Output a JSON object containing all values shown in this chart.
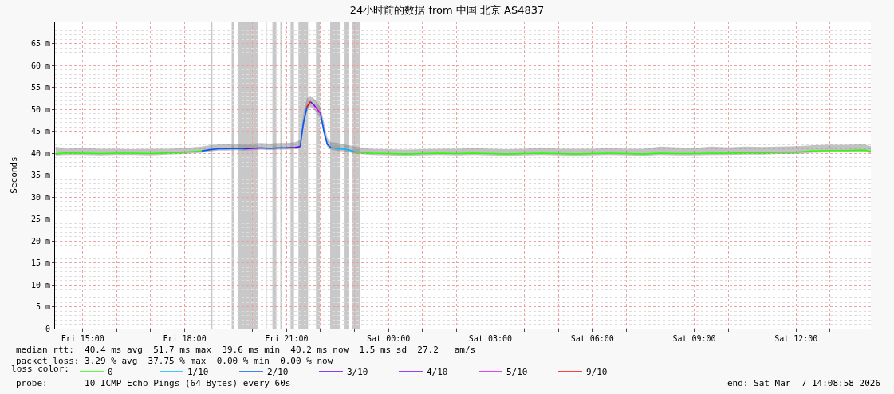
{
  "chart_data": {
    "type": "line",
    "title": "24小时前的数据 from 中国 北京 AS4837",
    "ylabel": "Seconds",
    "legend_title": "loss color:",
    "legend": "bottom",
    "grid": true,
    "marker": "none",
    "line_style": "solid",
    "xlim": [
      "2026-03-06T14:11",
      "2026-03-07T14:12"
    ],
    "ylim": [
      0,
      70
    ],
    "xticks": [
      {
        "value": "2026-03-06T15:00",
        "label": "Fri 15:00"
      },
      {
        "value": "2026-03-06T16:00",
        "label": null
      },
      {
        "value": "2026-03-06T17:00",
        "label": null
      },
      {
        "value": "2026-03-06T18:00",
        "label": "Fri 18:00"
      },
      {
        "value": "2026-03-06T19:00",
        "label": null
      },
      {
        "value": "2026-03-06T20:00",
        "label": null
      },
      {
        "value": "2026-03-06T21:00",
        "label": "Fri 21:00"
      },
      {
        "value": "2026-03-06T22:00",
        "label": null
      },
      {
        "value": "2026-03-06T23:00",
        "label": null
      },
      {
        "value": "2026-03-07T00:00",
        "label": "Sat 00:00"
      },
      {
        "value": "2026-03-07T01:00",
        "label": null
      },
      {
        "value": "2026-03-07T02:00",
        "label": null
      },
      {
        "value": "2026-03-07T03:00",
        "label": "Sat 03:00"
      },
      {
        "value": "2026-03-07T04:00",
        "label": null
      },
      {
        "value": "2026-03-07T05:00",
        "label": null
      },
      {
        "value": "2026-03-07T06:00",
        "label": "Sat 06:00"
      },
      {
        "value": "2026-03-07T07:00",
        "label": null
      },
      {
        "value": "2026-03-07T08:00",
        "label": null
      },
      {
        "value": "2026-03-07T09:00",
        "label": "Sat 09:00"
      },
      {
        "value": "2026-03-07T10:00",
        "label": null
      },
      {
        "value": "2026-03-07T11:00",
        "label": null
      },
      {
        "value": "2026-03-07T12:00",
        "label": "Sat 12:00"
      },
      {
        "value": "2026-03-07T13:00",
        "label": null
      },
      {
        "value": "2026-03-07T14:00",
        "label": null
      }
    ],
    "yticks": [
      0,
      {
        "value": 5,
        "label": "5 m"
      },
      {
        "value": 10,
        "label": "10 m"
      },
      {
        "value": 15,
        "label": "15 m"
      },
      {
        "value": 20,
        "label": "20 m"
      },
      {
        "value": 25,
        "label": "25 m"
      },
      {
        "value": 30,
        "label": "30 m"
      },
      {
        "value": 35,
        "label": "35 m"
      },
      {
        "value": 40,
        "label": "40 m"
      },
      {
        "value": 45,
        "label": "45 m"
      },
      {
        "value": 50,
        "label": "50 m"
      },
      {
        "value": 55,
        "label": "55 m"
      },
      {
        "value": 60,
        "label": "60 m"
      },
      {
        "value": 65,
        "label": "65 m"
      }
    ],
    "series": [
      {
        "name": "0",
        "color": "#26ff00",
        "x": [
          "2026-03-06T14:12",
          "2026-03-06T14:30",
          "2026-03-06T15:00",
          "2026-03-06T15:30",
          "2026-03-06T16:00",
          "2026-03-06T16:30",
          "2026-03-06T17:00",
          "2026-03-06T17:30",
          "2026-03-06T18:00",
          "2026-03-06T18:30",
          "2026-03-06T18:45",
          "2026-03-06T19:00",
          "2026-03-06T19:15",
          "2026-03-06T19:30",
          "2026-03-06T19:45",
          "2026-03-06T20:00",
          "2026-03-06T20:15",
          "2026-03-06T20:30",
          "2026-03-06T20:45",
          "2026-03-06T21:00",
          "2026-03-06T21:15",
          "2026-03-06T21:24",
          "2026-03-06T21:30",
          "2026-03-06T21:36",
          "2026-03-06T21:42",
          "2026-03-06T21:48",
          "2026-03-06T21:54",
          "2026-03-06T22:00",
          "2026-03-06T22:06",
          "2026-03-06T22:12",
          "2026-03-06T22:18",
          "2026-03-06T22:30",
          "2026-03-06T22:42",
          "2026-03-06T22:51",
          "2026-03-06T23:00",
          "2026-03-06T23:30",
          "2026-03-07T00:00",
          "2026-03-07T00:30",
          "2026-03-07T01:00",
          "2026-03-07T01:30",
          "2026-03-07T02:00",
          "2026-03-07T02:30",
          "2026-03-07T03:00",
          "2026-03-07T03:30",
          "2026-03-07T04:00",
          "2026-03-07T04:30",
          "2026-03-07T05:00",
          "2026-03-07T05:30",
          "2026-03-07T06:00",
          "2026-03-07T06:30",
          "2026-03-07T07:00",
          "2026-03-07T07:30",
          "2026-03-07T08:00",
          "2026-03-07T08:30",
          "2026-03-07T09:00",
          "2026-03-07T09:30",
          "2026-03-07T10:00",
          "2026-03-07T10:30",
          "2026-03-07T11:00",
          "2026-03-07T11:30",
          "2026-03-07T12:00",
          "2026-03-07T12:30",
          "2026-03-07T13:00",
          "2026-03-07T13:30",
          "2026-03-07T14:00",
          "2026-03-07T14:12"
        ],
        "values": [
          39.8,
          40.1,
          40.0,
          39.9,
          40.0,
          40.0,
          39.9,
          40.1,
          40.2,
          40.5,
          null,
          null,
          null,
          null,
          null,
          null,
          null,
          null,
          null,
          null,
          null,
          null,
          null,
          null,
          null,
          null,
          null,
          null,
          null,
          null,
          null,
          null,
          null,
          null,
          40.3,
          40.0,
          39.9,
          39.8,
          39.9,
          40.0,
          39.9,
          40.0,
          39.9,
          39.8,
          39.9,
          40.0,
          39.9,
          39.8,
          39.9,
          40.0,
          39.9,
          39.8,
          40.0,
          39.9,
          39.9,
          40.0,
          40.0,
          40.1,
          40.1,
          40.2,
          40.2,
          40.5,
          40.6,
          40.6,
          40.7,
          40.4
        ],
        "lower": [
          39.5,
          39.6,
          39.6,
          39.5,
          39.6,
          39.6,
          39.5,
          39.7,
          39.8,
          40.1,
          40.4,
          40.6,
          40.6,
          40.7,
          40.6,
          40.7,
          40.8,
          40.7,
          40.8,
          40.8,
          40.9,
          41.0,
          46.0,
          49.5,
          50.5,
          50.0,
          49.0,
          48.0,
          44.0,
          41.5,
          40.8,
          40.5,
          40.4,
          40.2,
          39.9,
          39.6,
          39.5,
          39.4,
          39.5,
          39.6,
          39.5,
          39.6,
          39.5,
          39.4,
          39.5,
          39.6,
          39.5,
          39.4,
          39.5,
          39.6,
          39.5,
          39.4,
          39.6,
          39.5,
          39.5,
          39.6,
          39.6,
          39.7,
          39.7,
          39.8,
          39.8,
          40.1,
          40.2,
          40.2,
          40.3,
          40.0
        ],
        "upper": [
          41.5,
          41.0,
          41.2,
          41.0,
          41.0,
          40.9,
          41.0,
          41.0,
          41.2,
          41.5,
          41.8,
          42.0,
          42.0,
          42.2,
          42.0,
          42.2,
          42.3,
          42.2,
          42.3,
          42.3,
          42.5,
          43.0,
          49.0,
          52.5,
          53.0,
          52.5,
          51.5,
          50.5,
          47.0,
          43.5,
          42.5,
          42.3,
          42.0,
          41.8,
          41.5,
          41.0,
          40.9,
          40.8,
          40.9,
          41.0,
          41.0,
          41.2,
          41.0,
          40.9,
          41.0,
          41.3,
          41.0,
          41.0,
          41.0,
          41.2,
          41.0,
          41.0,
          41.5,
          41.3,
          41.2,
          41.5,
          41.3,
          41.5,
          41.4,
          41.5,
          41.6,
          41.8,
          41.9,
          41.9,
          42.0,
          41.6
        ]
      },
      {
        "name": "1/10",
        "color": "#00b8ff",
        "x": [
          "2026-03-06T22:18",
          "2026-03-06T22:30",
          "2026-03-06T22:42",
          "2026-03-06T22:51",
          "2026-03-06T23:00"
        ],
        "values": [
          41.3,
          41.0,
          40.9,
          40.7,
          40.3
        ]
      },
      {
        "name": "2/10",
        "color": "#0059ff",
        "x": [
          "2026-03-06T18:30",
          "2026-03-06T18:45",
          "2026-03-06T19:00",
          "2026-03-06T19:15",
          "2026-03-06T19:30",
          "2026-03-06T19:45",
          "2026-03-06T20:00",
          "2026-03-06T20:15",
          "2026-03-06T20:30",
          "2026-03-06T20:45",
          "2026-03-06T21:00",
          "2026-03-06T21:15",
          "2026-03-06T21:24",
          "2026-03-06T21:30",
          "2026-03-06T21:36",
          "2026-03-06T21:42",
          "2026-03-06T21:48",
          "2026-03-06T21:54",
          "2026-03-06T22:00",
          "2026-03-06T22:06",
          "2026-03-06T22:12",
          "2026-03-06T22:18"
        ],
        "values": [
          40.5,
          40.8,
          41.0,
          41.0,
          41.1,
          41.0,
          null,
          41.2,
          41.1,
          41.2,
          41.2,
          null,
          41.5,
          47.0,
          50.5,
          null,
          null,
          null,
          49.0,
          45.0,
          42.0,
          41.3
        ]
      },
      {
        "name": "3/10",
        "color": "#5e00ff",
        "x": [
          "2026-03-06T19:45",
          "2026-03-06T20:00",
          "2026-03-06T20:15",
          null,
          "2026-03-06T21:00",
          "2026-03-06T21:15",
          "2026-03-06T21:24"
        ],
        "values": [
          41.0,
          41.1,
          41.2,
          null,
          41.2,
          41.3,
          41.5
        ]
      },
      {
        "name": "4/10",
        "color": "#7e00ff",
        "x": [
          "2026-03-06T21:42",
          "2026-03-06T21:48",
          "2026-03-06T21:51"
        ],
        "values": [
          51.7,
          51.0,
          50.5
        ]
      },
      {
        "name": "5/10",
        "color": "#dd00ff",
        "x": [
          "2026-03-06T21:51",
          "2026-03-06T21:54",
          "2026-03-06T22:00"
        ],
        "values": [
          50.5,
          50.0,
          49.0
        ]
      },
      {
        "name": "9/10",
        "color": "#ff0000",
        "x": [
          "2026-03-06T21:36",
          "2026-03-06T21:42"
        ],
        "values": [
          50.5,
          51.7
        ]
      }
    ],
    "bands": [
      {
        "axis": "x",
        "from": "2026-03-06T18:46",
        "to": "2026-03-06T18:49",
        "color": "#c8c8c8"
      },
      {
        "axis": "x",
        "from": "2026-03-06T19:23",
        "to": "2026-03-06T19:27",
        "color": "#c8c8c8"
      },
      {
        "axis": "x",
        "from": "2026-03-06T19:34",
        "to": "2026-03-06T20:10",
        "color": "#c8c8c8"
      },
      {
        "axis": "x",
        "from": "2026-03-06T20:23",
        "to": "2026-03-06T20:25",
        "color": "#c8c8c8"
      },
      {
        "axis": "x",
        "from": "2026-03-06T20:35",
        "to": "2026-03-06T20:42",
        "color": "#c8c8c8"
      },
      {
        "axis": "x",
        "from": "2026-03-06T20:49",
        "to": "2026-03-06T20:52",
        "color": "#c8c8c8"
      },
      {
        "axis": "x",
        "from": "2026-03-06T21:07",
        "to": "2026-03-06T21:13",
        "color": "#c8c8c8"
      },
      {
        "axis": "x",
        "from": "2026-03-06T21:21",
        "to": "2026-03-06T21:38",
        "color": "#c8c8c8"
      },
      {
        "axis": "x",
        "from": "2026-03-06T21:52",
        "to": "2026-03-06T21:59",
        "color": "#c8c8c8"
      },
      {
        "axis": "x",
        "from": "2026-03-06T22:17",
        "to": "2026-03-06T22:34",
        "color": "#c8c8c8"
      },
      {
        "axis": "x",
        "from": "2026-03-06T22:41",
        "to": "2026-03-06T22:50",
        "color": "#c8c8c8"
      },
      {
        "axis": "x",
        "from": "2026-03-06T22:55",
        "to": "2026-03-06T23:10",
        "color": "#c8c8c8"
      }
    ],
    "annotations": [
      "median rtt:  40.4 ms avg  51.7 ms max  39.6 ms min  40.2 ms now  1.5 ms sd  27.2   am/s",
      "packet loss: 3.29 % avg  37.75 % max  0.00 % min  0.00 % now",
      "probe:       10 ICMP Echo Pings (64 Bytes) every 60s",
      "end: Sat Mar  7 14:08:58 2026"
    ]
  }
}
